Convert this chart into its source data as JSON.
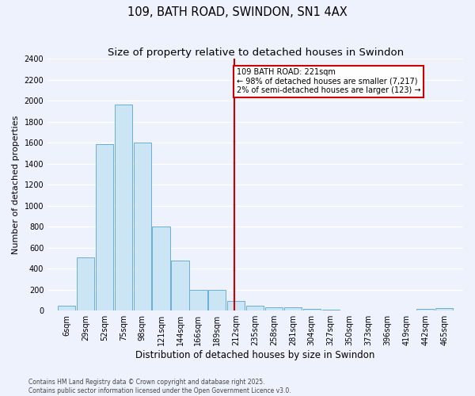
{
  "title": "109, BATH ROAD, SWINDON, SN1 4AX",
  "subtitle": "Size of property relative to detached houses in Swindon",
  "xlabel": "Distribution of detached houses by size in Swindon",
  "ylabel": "Number of detached properties",
  "footer_line1": "Contains HM Land Registry data © Crown copyright and database right 2025.",
  "footer_line2": "Contains public sector information licensed under the Open Government Licence v3.0.",
  "bar_color": "#cce5f5",
  "bar_edgecolor": "#6aafd4",
  "vline_x": 221,
  "vline_color": "#cc0000",
  "annotation_text": "109 BATH ROAD: 221sqm\n← 98% of detached houses are smaller (7,217)\n2% of semi-detached houses are larger (123) →",
  "annotation_boxcolor": "white",
  "annotation_edgecolor": "#cc0000",
  "bins": [
    6,
    29,
    52,
    75,
    98,
    121,
    144,
    166,
    189,
    212,
    235,
    258,
    281,
    304,
    327,
    350,
    373,
    396,
    419,
    442,
    465
  ],
  "counts": [
    50,
    510,
    1590,
    1960,
    1600,
    800,
    480,
    200,
    195,
    95,
    45,
    35,
    30,
    15,
    8,
    0,
    0,
    0,
    0,
    18,
    25
  ],
  "ylim": [
    0,
    2400
  ],
  "yticks": [
    0,
    200,
    400,
    600,
    800,
    1000,
    1200,
    1400,
    1600,
    1800,
    2000,
    2200,
    2400
  ],
  "background_color": "#eef2fc",
  "grid_color": "#ffffff",
  "title_fontsize": 10.5,
  "subtitle_fontsize": 9.5,
  "xlabel_fontsize": 8.5,
  "ylabel_fontsize": 8,
  "tick_fontsize": 7,
  "footer_fontsize": 5.5,
  "annotation_fontsize": 7
}
